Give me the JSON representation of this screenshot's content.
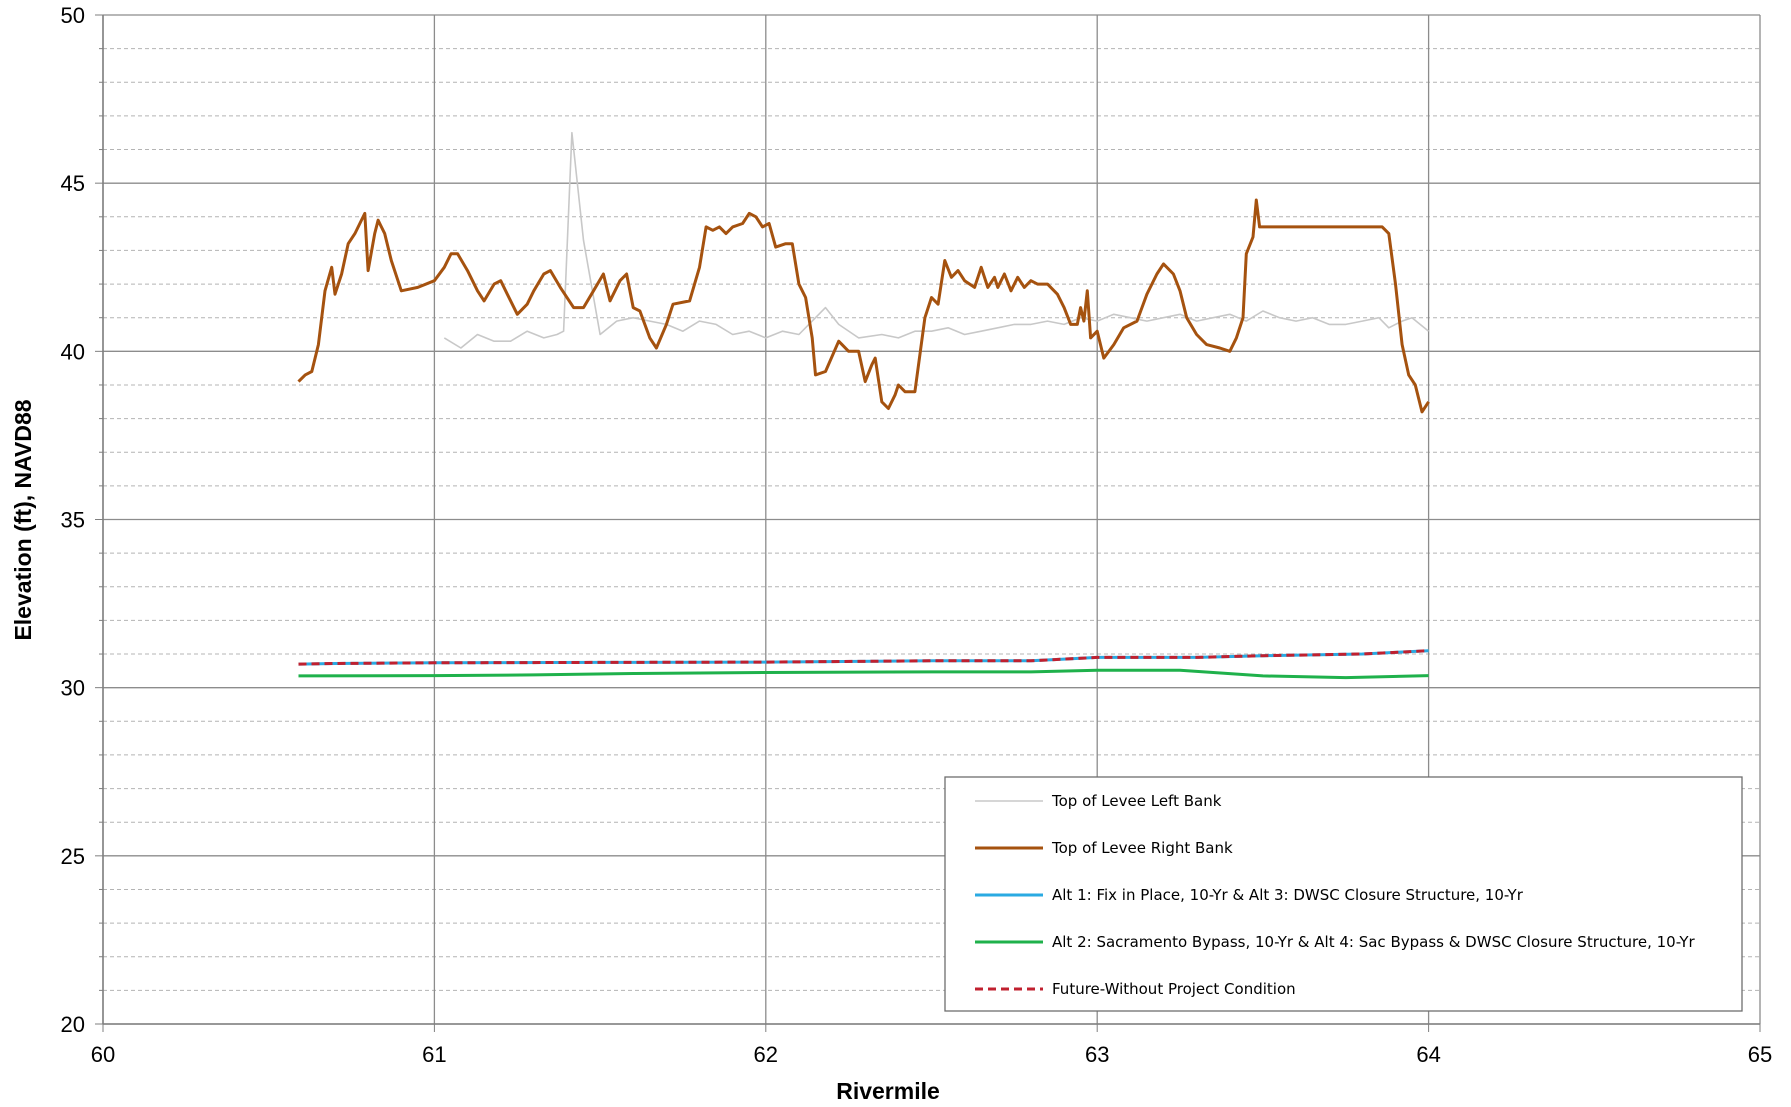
{
  "chart_data": {
    "type": "line",
    "title": "",
    "xlabel": "Rivermile",
    "ylabel": "Elevation (ft), NAVD88",
    "xlim": [
      60,
      65
    ],
    "ylim": [
      20,
      50
    ],
    "x_ticks": [
      "60",
      "61",
      "62",
      "63",
      "64",
      "65"
    ],
    "y_ticks": [
      "20",
      "25",
      "30",
      "35",
      "40",
      "45",
      "50"
    ],
    "grid": "major and minor horizontal, major vertical",
    "legend_position": "bottom-right inside plot",
    "series": [
      {
        "name": "Top of Levee Left Bank",
        "color": "#c8c8c8",
        "style": "solid-thin",
        "points": [
          [
            61.03,
            40.4
          ],
          [
            61.08,
            40.1
          ],
          [
            61.13,
            40.5
          ],
          [
            61.18,
            40.3
          ],
          [
            61.23,
            40.3
          ],
          [
            61.28,
            40.6
          ],
          [
            61.33,
            40.4
          ],
          [
            61.37,
            40.5
          ],
          [
            61.39,
            40.6
          ],
          [
            61.415,
            46.5
          ],
          [
            61.45,
            43.3
          ],
          [
            61.5,
            40.5
          ],
          [
            61.55,
            40.9
          ],
          [
            61.6,
            41.0
          ],
          [
            61.65,
            40.9
          ],
          [
            61.7,
            40.8
          ],
          [
            61.75,
            40.6
          ],
          [
            61.8,
            40.9
          ],
          [
            61.85,
            40.8
          ],
          [
            61.9,
            40.5
          ],
          [
            61.95,
            40.6
          ],
          [
            62.0,
            40.4
          ],
          [
            62.05,
            40.6
          ],
          [
            62.1,
            40.5
          ],
          [
            62.15,
            41.0
          ],
          [
            62.18,
            41.3
          ],
          [
            62.22,
            40.8
          ],
          [
            62.28,
            40.4
          ],
          [
            62.35,
            40.5
          ],
          [
            62.4,
            40.4
          ],
          [
            62.45,
            40.6
          ],
          [
            62.5,
            40.6
          ],
          [
            62.55,
            40.7
          ],
          [
            62.6,
            40.5
          ],
          [
            62.65,
            40.6
          ],
          [
            62.7,
            40.7
          ],
          [
            62.75,
            40.8
          ],
          [
            62.8,
            40.8
          ],
          [
            62.85,
            40.9
          ],
          [
            62.9,
            40.8
          ],
          [
            62.95,
            41.0
          ],
          [
            63.0,
            40.9
          ],
          [
            63.05,
            41.1
          ],
          [
            63.1,
            41.0
          ],
          [
            63.15,
            40.9
          ],
          [
            63.2,
            41.0
          ],
          [
            63.25,
            41.1
          ],
          [
            63.3,
            40.9
          ],
          [
            63.35,
            41.0
          ],
          [
            63.4,
            41.1
          ],
          [
            63.45,
            40.9
          ],
          [
            63.5,
            41.2
          ],
          [
            63.55,
            41.0
          ],
          [
            63.6,
            40.9
          ],
          [
            63.65,
            41.0
          ],
          [
            63.7,
            40.8
          ],
          [
            63.75,
            40.8
          ],
          [
            63.8,
            40.9
          ],
          [
            63.85,
            41.0
          ],
          [
            63.88,
            40.7
          ],
          [
            63.92,
            40.9
          ],
          [
            63.95,
            41.0
          ],
          [
            64.0,
            40.6
          ]
        ]
      },
      {
        "name": "Top of Levee Right Bank",
        "color": "#a5520f",
        "style": "solid-thick",
        "points": [
          [
            60.59,
            39.1
          ],
          [
            60.61,
            39.3
          ],
          [
            60.63,
            39.4
          ],
          [
            60.65,
            40.2
          ],
          [
            60.67,
            41.8
          ],
          [
            60.69,
            42.5
          ],
          [
            60.7,
            41.7
          ],
          [
            60.72,
            42.3
          ],
          [
            60.74,
            43.2
          ],
          [
            60.76,
            43.5
          ],
          [
            60.79,
            44.1
          ],
          [
            60.8,
            42.4
          ],
          [
            60.82,
            43.5
          ],
          [
            60.83,
            43.9
          ],
          [
            60.85,
            43.5
          ],
          [
            60.87,
            42.7
          ],
          [
            60.9,
            41.8
          ],
          [
            60.95,
            41.9
          ],
          [
            61.0,
            42.1
          ],
          [
            61.03,
            42.5
          ],
          [
            61.05,
            42.9
          ],
          [
            61.07,
            42.9
          ],
          [
            61.1,
            42.4
          ],
          [
            61.13,
            41.8
          ],
          [
            61.15,
            41.5
          ],
          [
            61.18,
            42.0
          ],
          [
            61.2,
            42.1
          ],
          [
            61.22,
            41.7
          ],
          [
            61.25,
            41.1
          ],
          [
            61.28,
            41.4
          ],
          [
            61.3,
            41.8
          ],
          [
            61.33,
            42.3
          ],
          [
            61.35,
            42.4
          ],
          [
            61.38,
            41.9
          ],
          [
            61.42,
            41.3
          ],
          [
            61.45,
            41.3
          ],
          [
            61.48,
            41.8
          ],
          [
            61.51,
            42.3
          ],
          [
            61.53,
            41.5
          ],
          [
            61.56,
            42.1
          ],
          [
            61.58,
            42.3
          ],
          [
            61.6,
            41.3
          ],
          [
            61.62,
            41.2
          ],
          [
            61.65,
            40.4
          ],
          [
            61.67,
            40.1
          ],
          [
            61.7,
            40.8
          ],
          [
            61.72,
            41.4
          ],
          [
            61.77,
            41.5
          ],
          [
            61.8,
            42.5
          ],
          [
            61.82,
            43.7
          ],
          [
            61.84,
            43.6
          ],
          [
            61.86,
            43.7
          ],
          [
            61.88,
            43.5
          ],
          [
            61.9,
            43.7
          ],
          [
            61.93,
            43.8
          ],
          [
            61.95,
            44.1
          ],
          [
            61.97,
            44.0
          ],
          [
            61.99,
            43.7
          ],
          [
            62.01,
            43.8
          ],
          [
            62.03,
            43.1
          ],
          [
            62.06,
            43.2
          ],
          [
            62.08,
            43.2
          ],
          [
            62.1,
            42.0
          ],
          [
            62.12,
            41.6
          ],
          [
            62.14,
            40.4
          ],
          [
            62.15,
            39.3
          ],
          [
            62.18,
            39.4
          ],
          [
            62.22,
            40.3
          ],
          [
            62.25,
            40.0
          ],
          [
            62.28,
            40.0
          ],
          [
            62.3,
            39.1
          ],
          [
            62.32,
            39.6
          ],
          [
            62.33,
            39.8
          ],
          [
            62.35,
            38.5
          ],
          [
            62.37,
            38.3
          ],
          [
            62.39,
            38.7
          ],
          [
            62.4,
            39.0
          ],
          [
            62.42,
            38.8
          ],
          [
            62.45,
            38.8
          ],
          [
            62.48,
            41.0
          ],
          [
            62.5,
            41.6
          ],
          [
            62.52,
            41.4
          ],
          [
            62.54,
            42.7
          ],
          [
            62.56,
            42.2
          ],
          [
            62.58,
            42.4
          ],
          [
            62.6,
            42.1
          ],
          [
            62.63,
            41.9
          ],
          [
            62.65,
            42.5
          ],
          [
            62.67,
            41.9
          ],
          [
            62.69,
            42.2
          ],
          [
            62.7,
            41.9
          ],
          [
            62.72,
            42.3
          ],
          [
            62.74,
            41.8
          ],
          [
            62.76,
            42.2
          ],
          [
            62.78,
            41.9
          ],
          [
            62.8,
            42.1
          ],
          [
            62.82,
            42.0
          ],
          [
            62.85,
            42.0
          ],
          [
            62.88,
            41.7
          ],
          [
            62.9,
            41.3
          ],
          [
            62.92,
            40.8
          ],
          [
            62.94,
            40.8
          ],
          [
            62.95,
            41.3
          ],
          [
            62.96,
            40.9
          ],
          [
            62.97,
            41.8
          ],
          [
            62.98,
            40.4
          ],
          [
            63.0,
            40.6
          ],
          [
            63.02,
            39.8
          ],
          [
            63.05,
            40.2
          ],
          [
            63.08,
            40.7
          ],
          [
            63.12,
            40.9
          ],
          [
            63.15,
            41.7
          ],
          [
            63.18,
            42.3
          ],
          [
            63.2,
            42.6
          ],
          [
            63.23,
            42.3
          ],
          [
            63.25,
            41.8
          ],
          [
            63.27,
            41.0
          ],
          [
            63.3,
            40.5
          ],
          [
            63.33,
            40.2
          ],
          [
            63.37,
            40.1
          ],
          [
            63.4,
            40.0
          ],
          [
            63.42,
            40.4
          ],
          [
            63.44,
            41.0
          ],
          [
            63.45,
            42.9
          ],
          [
            63.47,
            43.4
          ],
          [
            63.48,
            44.5
          ],
          [
            63.49,
            43.7
          ],
          [
            63.52,
            43.7
          ],
          [
            63.86,
            43.7
          ],
          [
            63.88,
            43.5
          ],
          [
            63.9,
            42.0
          ],
          [
            63.92,
            40.2
          ],
          [
            63.94,
            39.3
          ],
          [
            63.96,
            39.0
          ],
          [
            63.98,
            38.2
          ],
          [
            64.0,
            38.5
          ]
        ]
      },
      {
        "name": "Alt 1: Fix in Place, 10-Yr & Alt 3: DWSC Closure Structure, 10-Yr",
        "color": "#2aaae2",
        "style": "solid",
        "points": [
          [
            60.59,
            30.7
          ],
          [
            60.7,
            30.72
          ],
          [
            61.0,
            30.74
          ],
          [
            61.5,
            30.75
          ],
          [
            62.0,
            30.76
          ],
          [
            62.5,
            30.8
          ],
          [
            62.8,
            30.8
          ],
          [
            62.9,
            30.85
          ],
          [
            63.0,
            30.9
          ],
          [
            63.3,
            30.9
          ],
          [
            63.5,
            30.95
          ],
          [
            63.8,
            31.0
          ],
          [
            64.0,
            31.1
          ]
        ]
      },
      {
        "name": "Alt 2: Sacramento Bypass, 10-Yr &  Alt 4: Sac Bypass & DWSC Closure Structure, 10-Yr",
        "color": "#1fb14b",
        "style": "solid",
        "points": [
          [
            60.59,
            30.35
          ],
          [
            61.0,
            30.36
          ],
          [
            61.3,
            30.38
          ],
          [
            61.6,
            30.42
          ],
          [
            62.0,
            30.45
          ],
          [
            62.5,
            30.47
          ],
          [
            62.8,
            30.47
          ],
          [
            63.0,
            30.52
          ],
          [
            63.25,
            30.52
          ],
          [
            63.5,
            30.35
          ],
          [
            63.75,
            30.3
          ],
          [
            64.0,
            30.36
          ]
        ]
      },
      {
        "name": "Future-Without  Project Condition",
        "color": "#c0202f",
        "style": "dashed",
        "points": [
          [
            60.59,
            30.7
          ],
          [
            60.7,
            30.72
          ],
          [
            61.0,
            30.74
          ],
          [
            61.5,
            30.75
          ],
          [
            62.0,
            30.76
          ],
          [
            62.5,
            30.8
          ],
          [
            62.8,
            30.8
          ],
          [
            62.9,
            30.85
          ],
          [
            63.0,
            30.9
          ],
          [
            63.3,
            30.9
          ],
          [
            63.5,
            30.95
          ],
          [
            63.8,
            31.0
          ],
          [
            64.0,
            31.1
          ]
        ]
      }
    ]
  }
}
